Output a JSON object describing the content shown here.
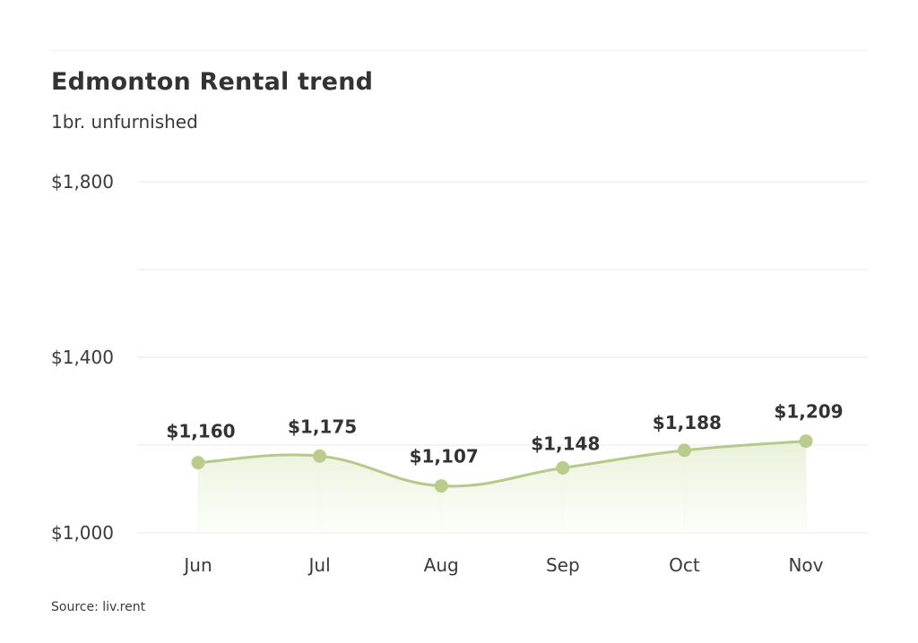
{
  "header": {
    "title": "Edmonton Rental trend",
    "subtitle": "1br. unfurnished"
  },
  "footer": {
    "source": "Source: liv.rent"
  },
  "colors": {
    "line": "#b5c98a",
    "marker": "#b9cc8c",
    "area_top": "#e6efd3",
    "area_bottom": "#fbfdf7",
    "grid": "#f0f0f0",
    "text": "#333333"
  },
  "chart_data": {
    "type": "area",
    "title": "Edmonton Rental trend",
    "subtitle": "1br. unfurnished",
    "xlabel": "",
    "ylabel": "",
    "categories": [
      "Jun",
      "Jul",
      "Aug",
      "Sep",
      "Oct",
      "Nov"
    ],
    "series": [
      {
        "name": "1br. unfurnished",
        "values": [
          1160,
          1175,
          1107,
          1148,
          1188,
          1209
        ]
      }
    ],
    "data_labels": [
      "$1,160",
      "$1,175",
      "$1,107",
      "$1,148",
      "$1,188",
      "$1,209"
    ],
    "y_ticks": [
      1000,
      1400,
      1800
    ],
    "y_tick_labels": [
      "$1,000",
      "$1,400",
      "$1,800"
    ],
    "gridlines": [
      1000,
      1200,
      1400,
      1600,
      1800
    ],
    "ylim": [
      1000,
      1800
    ],
    "grid": true,
    "legend": "none",
    "smooth": true,
    "source": "Source: liv.rent"
  }
}
